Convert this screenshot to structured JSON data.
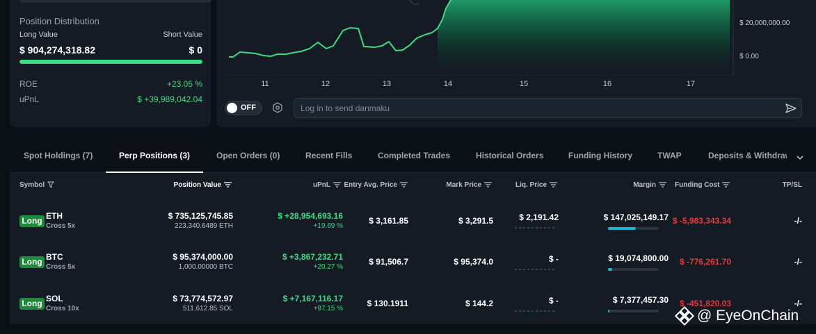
{
  "position_distribution": {
    "title": "Position Distribution",
    "long_label": "Long Value",
    "short_label": "Short Value",
    "long_value": "$ 904,274,318.82",
    "short_value": "$ 0",
    "long_fraction": 1.0,
    "roe_label": "ROE",
    "roe_value": "+23.05 %",
    "upnl_label": "uPnL",
    "upnl_value": "$ +39,989,042.04"
  },
  "chart": {
    "y_labels": [
      "$ 20,000,000.00",
      "$ 0.00"
    ],
    "x_labels": [
      "11",
      "12",
      "13",
      "14",
      "15",
      "16",
      "17"
    ],
    "line_color": "#3ddc84",
    "toggle_label": "OFF",
    "danmaku_placeholder": "Log in to send danmaku"
  },
  "tabs": [
    {
      "label": "Spot Holdings (7)"
    },
    {
      "label": "Perp Positions (3)"
    },
    {
      "label": "Open Orders (0)"
    },
    {
      "label": "Recent Fills"
    },
    {
      "label": "Completed Trades"
    },
    {
      "label": "Historical Orders"
    },
    {
      "label": "Funding History"
    },
    {
      "label": "TWAP"
    },
    {
      "label": "Deposits & Withdraw"
    }
  ],
  "table": {
    "headers": {
      "symbol": "Symbol",
      "position_value": "Position Value",
      "upnl": "uPnL",
      "entry": "Entry Avg. Price",
      "mark": "Mark Price",
      "liq": "Liq. Price",
      "margin": "Margin",
      "funding": "Funding Cost",
      "tpsl": "TP/SL"
    },
    "rows": [
      {
        "side": "Long",
        "symbol": "ETH",
        "leverage": "Cross 5x",
        "position_value": "$ 735,125,745.85",
        "position_size": "223,340.6489 ETH",
        "upnl": "$ +28,954,693.16",
        "upnl_pct": "+19.69 %",
        "entry": "$ 3,161.85",
        "mark": "$ 3,291.5",
        "liq": "$ 2,191.42",
        "margin": "$ 147,025,149.17",
        "margin_fraction": 0.55,
        "funding": "$ -5,983,343.34",
        "tpsl": "-/-"
      },
      {
        "side": "Long",
        "symbol": "BTC",
        "leverage": "Cross 5x",
        "position_value": "$ 95,374,000.00",
        "position_size": "1,000.00000 BTC",
        "upnl": "$ +3,867,232.71",
        "upnl_pct": "+20.27 %",
        "entry": "$ 91,506.7",
        "mark": "$ 95,374.0",
        "liq": "$ -",
        "margin": "$ 19,074,800.00",
        "margin_fraction": 0.08,
        "funding": "$ -776,261.70",
        "tpsl": "-/-"
      },
      {
        "side": "Long",
        "symbol": "SOL",
        "leverage": "Cross 10x",
        "position_value": "$ 73,774,572.97",
        "position_size": "511,612.85 SOL",
        "upnl": "$ +7,167,116.17",
        "upnl_pct": "+97.15 %",
        "entry": "$ 130.1911",
        "mark": "$ 144.2",
        "liq": "$ -",
        "margin": "$ 7,377,457.30",
        "margin_fraction": 0.03,
        "funding": "$ -451,820.03",
        "tpsl": "-/-"
      }
    ]
  },
  "watermark": {
    "text": "@ EyeOnChain"
  }
}
